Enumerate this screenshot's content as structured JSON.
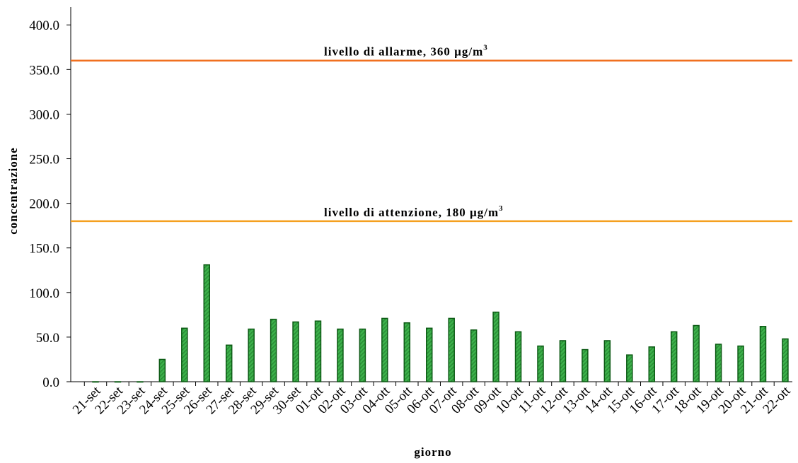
{
  "chart_data": {
    "type": "bar",
    "x_label": "giorno",
    "y_label": "concentrazione",
    "categories": [
      "21-set",
      "22-set",
      "23-set",
      "24-set",
      "25-set",
      "26-set",
      "27-set",
      "28-set",
      "29-set",
      "30-set",
      "01-ott",
      "02-ott",
      "03-ott",
      "04-ott",
      "05-ott",
      "06-ott",
      "07-ott",
      "08-ott",
      "09-ott",
      "10-ott",
      "11-ott",
      "12-ott",
      "13-ott",
      "14-ott",
      "15-ott",
      "16-ott",
      "17-ott",
      "18-ott",
      "19-ott",
      "20-ott",
      "21-ott",
      "22-ott"
    ],
    "values": [
      0,
      0,
      0,
      25,
      60,
      131,
      41,
      59,
      70,
      67,
      68,
      59,
      59,
      71,
      66,
      60,
      71,
      58,
      78,
      56,
      40,
      46,
      36,
      46,
      30,
      39,
      56,
      63,
      42,
      40,
      62,
      48
    ],
    "color": "#2e9a3a",
    "ylim": [
      0,
      420
    ],
    "yticks": [
      {
        "value": 0,
        "label": "0.0"
      },
      {
        "value": 50,
        "label": "50.0"
      },
      {
        "value": 100,
        "label": "100.0"
      },
      {
        "value": 150,
        "label": "150.0"
      },
      {
        "value": 200,
        "label": "200.0"
      },
      {
        "value": 250,
        "label": "250.0"
      },
      {
        "value": 300,
        "label": "300.0"
      },
      {
        "value": 350,
        "label": "350.0"
      },
      {
        "value": 400,
        "label": "400.0"
      }
    ],
    "reference_lines": [
      {
        "value": 360,
        "label": "livello di allarme,   360 µg/m",
        "superscript": "3",
        "color": "#f07020"
      },
      {
        "value": 180,
        "label": "livello di attenzione,  180 µg/m",
        "superscript": "3",
        "color": "#f5a020"
      }
    ]
  }
}
